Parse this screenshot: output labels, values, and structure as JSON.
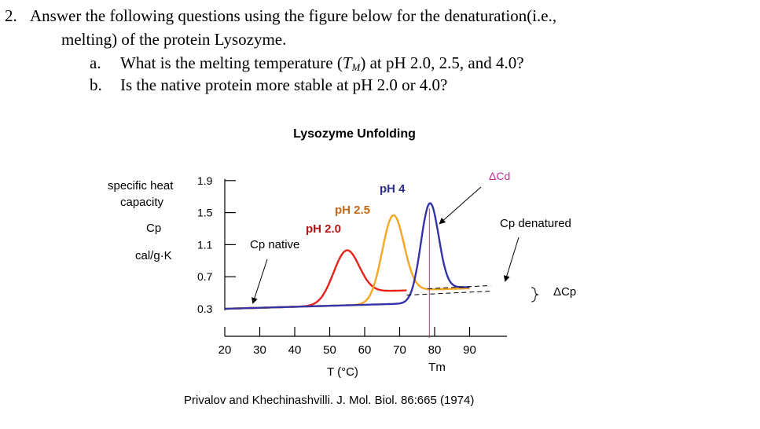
{
  "question": {
    "number": "2.",
    "line1": "Answer the following questions using the figure below for the denaturation(i.e.,",
    "line2": "melting) of the protein Lysozyme.",
    "a_marker": "a.",
    "a_text_before": "What is the melting temperature (",
    "a_symbol": "T",
    "a_subscript": "M",
    "a_text_after": ") at pH 2.0, 2.5, and 4.0?",
    "b_marker": "b.",
    "b_text": "Is the native protein more stable at pH 2.0 or 4.0?"
  },
  "chart_data": {
    "type": "line",
    "title": "Lysozyme Unfolding",
    "ylabel_lines": [
      "specific heat",
      "capacity",
      "Cp",
      "cal/g·K"
    ],
    "xlabel": "T (°C)",
    "xlabel_extra": "Tm",
    "yticks": [
      0.3,
      0.7,
      1.1,
      1.5,
      1.9
    ],
    "ytick_labels": [
      "0.3",
      "0.7",
      "1.1",
      "1.5",
      "1.9"
    ],
    "xticks": [
      20,
      30,
      40,
      50,
      60,
      70,
      80,
      90
    ],
    "xtick_labels": [
      "20",
      "30",
      "40",
      "50",
      "60",
      "70",
      "80",
      "90"
    ],
    "xlim": [
      20,
      95
    ],
    "ylim": [
      0.3,
      1.9
    ],
    "series": [
      {
        "name": "pH 2.0",
        "color": "#e8211b",
        "peak_x": 54.5,
        "peak_y": 1.03,
        "width": 5.2,
        "pre_end_x": 43,
        "plateau_y": 0.52,
        "end_x": 72,
        "baseline_start": [
          20,
          0.3
        ],
        "baseline_slope": 0.00125
      },
      {
        "name": "pH 2.5",
        "color": "#f5a623",
        "peak_x": 68,
        "peak_y": 1.47,
        "width": 4.4,
        "pre_end_x": 58,
        "plateau_y": 0.54,
        "end_x": 90,
        "baseline_start": [
          20,
          0.3
        ],
        "baseline_slope": 0.00125
      },
      {
        "name": "pH 4",
        "color": "#3434a8",
        "peak_x": 78.5,
        "peak_y": 1.62,
        "width": 3.6,
        "pre_end_x": 70,
        "plateau_y": 0.57,
        "end_x": 90,
        "baseline_start": [
          20,
          0.3
        ],
        "baseline_slope": 0.00125
      }
    ],
    "annotations": {
      "cp_native": "Cp native",
      "cp_denatured": "Cp denatured",
      "delta_cd": "ΔCd",
      "delta_cp": "ΔCp",
      "tm_line_x": 78.5
    },
    "dashed_lines": {
      "lower": {
        "from": [
          72,
          0.47
        ],
        "to": [
          96,
          0.52
        ]
      },
      "upper": {
        "from": [
          78,
          0.55
        ],
        "to": [
          96,
          0.59
        ]
      }
    },
    "grid": false,
    "legend": "none"
  },
  "citation": "Privalov and Khechinashvilli. J. Mol. Biol. 86:665 (1974)"
}
